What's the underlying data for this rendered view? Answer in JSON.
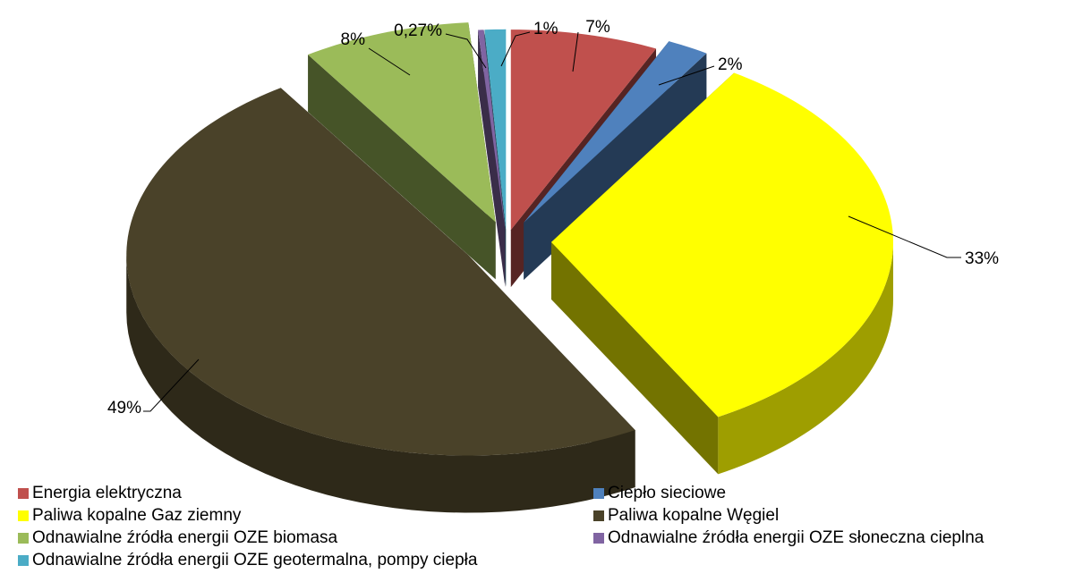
{
  "chart_data": {
    "type": "pie",
    "style": "3d-exploded",
    "slices": [
      {
        "name": "Energia elektryczna",
        "value": 7,
        "label": "7%",
        "color": "#C0504D"
      },
      {
        "name": "Ciepło sieciowe",
        "value": 2,
        "label": "2%",
        "color": "#4F81BD"
      },
      {
        "name": "Paliwa kopalne Gaz ziemny",
        "value": 33,
        "label": "33%",
        "color": "#FFFF00"
      },
      {
        "name": "Paliwa kopalne Węgiel",
        "value": 49,
        "label": "49%",
        "color": "#4A4229"
      },
      {
        "name": "Odnawialne źródła energii OZE biomasa",
        "value": 8,
        "label": "8%",
        "color": "#9BBB59"
      },
      {
        "name": "Odnawialne źródła energii OZE słoneczna cieplna",
        "value": 0.27,
        "label": "0,27%",
        "color": "#8064A2"
      },
      {
        "name": "Odnawialne źródła energii OZE geotermalna, pompy ciepła",
        "value": 1,
        "label": "1%",
        "color": "#4BACC6"
      }
    ],
    "legend_position": "bottom"
  }
}
